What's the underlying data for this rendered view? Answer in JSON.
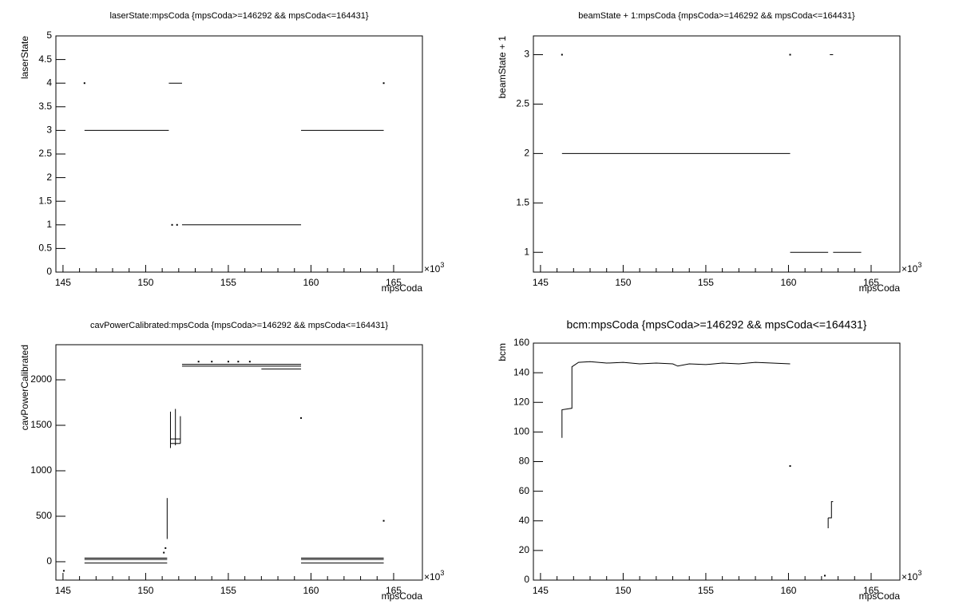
{
  "chart_data": [
    {
      "type": "line",
      "title": "laserState:mpsCoda {mpsCoda>=146292 && mpsCoda<=164431}",
      "x_label": "mpsCoda",
      "y_label": "laserState",
      "x_multiplier": {
        "base": "×10",
        "exponent": "3"
      },
      "xlim": [
        144.57,
        166.74
      ],
      "xticks": [
        145,
        150,
        155,
        160,
        165
      ],
      "ylim": [
        0,
        5
      ],
      "yticks": [
        0,
        0.5,
        1,
        1.5,
        2,
        2.5,
        3,
        3.5,
        4,
        4.5,
        5
      ],
      "series": [
        {
          "color": "#000000",
          "x": [
            146.3,
            null,
            146.3,
            151.4,
            null,
            151.4,
            152.2,
            null,
            151.6,
            null,
            151.9,
            null,
            152.2,
            159.4,
            null,
            159.4,
            164.4,
            null,
            164.4
          ],
          "values": [
            4,
            null,
            3,
            3,
            null,
            4,
            4,
            null,
            1,
            null,
            1,
            null,
            1,
            1,
            null,
            3,
            3,
            null,
            4
          ]
        }
      ]
    },
    {
      "type": "line",
      "title": "beamState + 1:mpsCoda {mpsCoda>=146292 && mpsCoda<=164431}",
      "x_label": "mpsCoda",
      "y_label": "beamState + 1",
      "x_multiplier": {
        "base": "×10",
        "exponent": "3"
      },
      "xlim": [
        144.57,
        166.74
      ],
      "xticks": [
        145,
        150,
        155,
        160,
        165
      ],
      "ylim": [
        0.8,
        3.19
      ],
      "yticks": [
        1,
        1.5,
        2,
        2.5,
        3
      ],
      "series": [
        {
          "color": "#000000",
          "x": [
            146.3,
            null,
            146.3,
            160.1,
            null,
            160.1,
            null,
            160.1,
            162.4,
            null,
            162.5,
            162.7,
            null,
            162.7,
            164.4
          ],
          "values": [
            3,
            null,
            2,
            2,
            null,
            3,
            null,
            1,
            1,
            null,
            3,
            3,
            null,
            1,
            1
          ]
        }
      ]
    },
    {
      "type": "line",
      "title": "cavPowerCalibrated:mpsCoda {mpsCoda>=146292 && mpsCoda<=164431}",
      "x_label": "mpsCoda",
      "y_label": "cavPowerCalibrated",
      "x_multiplier": {
        "base": "×10",
        "exponent": "3"
      },
      "xlim": [
        144.57,
        166.74
      ],
      "xticks": [
        145,
        150,
        155,
        160,
        165
      ],
      "ylim": [
        -202,
        2386
      ],
      "yticks": [
        0,
        500,
        1000,
        1500,
        2000
      ],
      "series": [
        {
          "color": "#000000",
          "x": [
            146.3,
            151.3,
            null,
            146.3,
            151.3,
            null,
            146.3,
            151.3,
            null,
            151.1,
            null,
            151.2,
            null,
            151.3,
            151.3,
            null,
            151.5,
            151.5,
            null,
            151.8,
            151.8,
            null,
            152.1,
            152.1,
            null,
            151.5,
            152.1,
            null,
            151.5,
            152.1,
            null,
            152.2,
            159.4,
            null,
            152.2,
            159.4,
            null,
            157,
            159.4,
            null,
            153.2,
            null,
            154,
            null,
            155,
            null,
            155.6,
            null,
            156.3,
            null,
            159.4,
            null,
            159.4,
            164.4,
            null,
            159.4,
            164.4,
            null,
            159.4,
            164.4,
            null,
            164.4,
            null,
            145.05
          ],
          "values": [
            40,
            40,
            null,
            25,
            25,
            null,
            -15,
            -15,
            null,
            100,
            null,
            150,
            null,
            250,
            700,
            null,
            1250,
            1650,
            null,
            1280,
            1680,
            null,
            1300,
            1600,
            null,
            1300,
            1300,
            null,
            1350,
            1350,
            null,
            2170,
            2170,
            null,
            2150,
            2150,
            null,
            2120,
            2120,
            null,
            2200,
            null,
            2200,
            null,
            2200,
            null,
            2200,
            null,
            2200,
            null,
            1580,
            null,
            40,
            40,
            null,
            25,
            25,
            null,
            -15,
            -15,
            null,
            450,
            null,
            -100
          ]
        }
      ]
    },
    {
      "type": "line",
      "title": "bcm:mpsCoda {mpsCoda>=146292 && mpsCoda<=164431}",
      "x_label": "mpsCoda",
      "y_label": "bcm",
      "x_multiplier": {
        "base": "×10",
        "exponent": "3"
      },
      "xlim": [
        144.57,
        166.74
      ],
      "xticks": [
        145,
        150,
        155,
        160,
        165
      ],
      "ylim": [
        0,
        160
      ],
      "yticks": [
        0,
        20,
        40,
        60,
        80,
        100,
        120,
        140,
        160
      ],
      "series": [
        {
          "color": "#000000",
          "x": [
            146.3,
            146.3,
            146.9,
            146.9,
            147.3,
            148,
            149,
            150,
            151,
            152,
            153,
            153.3,
            154,
            155,
            156,
            157,
            158,
            159,
            160.1,
            null,
            160.1,
            null,
            162.4,
            162.4,
            null,
            162.4,
            162.6,
            162.6,
            162.7,
            null,
            162.2
          ],
          "values": [
            96,
            115,
            116,
            144,
            147,
            147.5,
            146.5,
            147,
            146,
            146.5,
            146,
            144.5,
            146,
            145.5,
            146.5,
            146,
            147,
            146.5,
            146,
            null,
            77,
            null,
            35,
            42,
            null,
            42,
            42,
            53,
            53,
            null,
            3
          ]
        }
      ]
    }
  ]
}
